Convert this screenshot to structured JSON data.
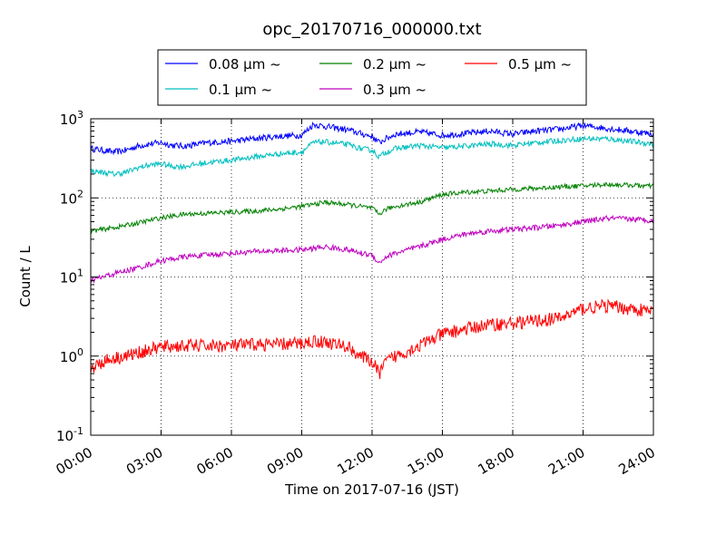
{
  "chart_data": {
    "type": "line",
    "title": "opc_20170716_000000.txt",
    "xlabel": "Time on 2017-07-16 (JST)",
    "ylabel": "Count / L",
    "xlim": [
      "00:00",
      "24:00"
    ],
    "ylim": [
      0.1,
      1000
    ],
    "y_scale": "log",
    "grid": true,
    "legend_position": "top, above plot",
    "x_ticks": [
      "00:00",
      "03:00",
      "06:00",
      "09:00",
      "12:00",
      "15:00",
      "18:00",
      "21:00",
      "24:00"
    ],
    "y_ticks": [
      {
        "value": 0.1,
        "base": "10",
        "exp": "-1"
      },
      {
        "value": 1,
        "base": "10",
        "exp": "0"
      },
      {
        "value": 10,
        "base": "10",
        "exp": "1"
      },
      {
        "value": 100,
        "base": "10",
        "exp": "2"
      },
      {
        "value": 1000,
        "base": "10",
        "exp": "3"
      }
    ],
    "series": [
      {
        "name": "0.08 μm ~",
        "color": "#0000ff",
        "x_hours": [
          0,
          1,
          1.5,
          2,
          2.5,
          3,
          3.5,
          4,
          5,
          6,
          7,
          8,
          9,
          9.5,
          10,
          10.5,
          11,
          11.5,
          12,
          12.3,
          12.6,
          13,
          14,
          15,
          16,
          17,
          18,
          19,
          20,
          21,
          22,
          23,
          24
        ],
        "values": [
          420,
          380,
          400,
          450,
          480,
          500,
          460,
          450,
          500,
          520,
          560,
          600,
          620,
          850,
          800,
          760,
          720,
          650,
          600,
          500,
          560,
          640,
          680,
          620,
          650,
          700,
          640,
          700,
          740,
          820,
          760,
          700,
          640
        ]
      },
      {
        "name": "0.1 μm ~",
        "color": "#00bfbf",
        "x_hours": [
          0,
          1,
          1.5,
          2,
          2.5,
          3,
          3.5,
          4,
          5,
          6,
          7,
          8,
          9,
          9.5,
          10,
          10.5,
          11,
          11.5,
          12,
          12.3,
          12.6,
          13,
          14,
          15,
          16,
          17,
          18,
          19,
          20,
          21,
          22,
          23,
          24
        ],
        "values": [
          220,
          200,
          210,
          240,
          260,
          270,
          250,
          250,
          280,
          300,
          330,
          360,
          380,
          500,
          510,
          490,
          470,
          420,
          400,
          330,
          380,
          420,
          460,
          430,
          450,
          480,
          460,
          500,
          530,
          560,
          560,
          520,
          480
        ]
      },
      {
        "name": "0.2 μm ~",
        "color": "#008000",
        "x_hours": [
          0,
          1,
          2,
          3,
          4,
          5,
          6,
          7,
          8,
          9,
          10,
          11,
          11.5,
          12,
          12.3,
          12.6,
          13,
          14,
          15,
          16,
          17,
          18,
          19,
          20,
          21,
          22,
          23,
          24
        ],
        "values": [
          38,
          42,
          48,
          56,
          62,
          64,
          66,
          68,
          72,
          78,
          88,
          82,
          78,
          74,
          62,
          72,
          78,
          88,
          110,
          118,
          122,
          128,
          132,
          138,
          142,
          148,
          145,
          140
        ]
      },
      {
        "name": "0.3 μm ~",
        "color": "#bf00bf",
        "x_hours": [
          0,
          0.5,
          1,
          2,
          3,
          4,
          5,
          6,
          7,
          8,
          9,
          10,
          11,
          11.5,
          12,
          12.3,
          12.6,
          13,
          14,
          15,
          16,
          17,
          18,
          19,
          20,
          21,
          22,
          23,
          24
        ],
        "values": [
          9,
          10,
          11,
          13,
          16,
          18,
          19,
          20,
          21,
          21.5,
          22,
          24,
          22,
          20,
          19,
          15,
          18,
          20,
          24,
          30,
          35,
          38,
          40,
          42,
          45,
          50,
          55,
          54,
          52
        ]
      },
      {
        "name": "0.5 μm ~",
        "color": "#ff0000",
        "x_hours": [
          0,
          0.5,
          1,
          1.5,
          2,
          3,
          4,
          5,
          6,
          7,
          8,
          9,
          9.5,
          10,
          10.5,
          11,
          11.5,
          12,
          12.3,
          12.6,
          13,
          14,
          15,
          16,
          17,
          18,
          19,
          20,
          21,
          22,
          23,
          24
        ],
        "values": [
          0.7,
          0.85,
          0.95,
          1.0,
          1.1,
          1.3,
          1.35,
          1.35,
          1.35,
          1.4,
          1.4,
          1.45,
          1.55,
          1.5,
          1.4,
          1.3,
          1.0,
          0.85,
          0.6,
          0.85,
          1.0,
          1.35,
          1.9,
          2.2,
          2.5,
          2.6,
          2.8,
          3.0,
          4.0,
          4.3,
          4.0,
          3.6
        ]
      }
    ]
  }
}
